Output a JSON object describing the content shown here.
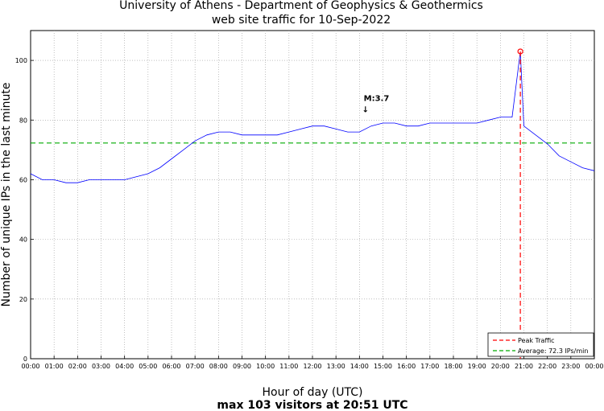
{
  "chart_data": {
    "type": "line",
    "title": "University of Athens - Department of Geophysics & Geothermics",
    "subtitle": "web site traffic for 10-Sep-2022",
    "xlabel": "Hour of day (UTC)",
    "ylabel": "Number of unique IPs in the last minute",
    "caption": "max 103 visitors at 20:51 UTC",
    "xlim_minutes": [
      0,
      1440
    ],
    "ylim": [
      0,
      110
    ],
    "y_ticks": [
      0,
      20,
      40,
      60,
      80,
      100
    ],
    "x_tick_labels": [
      "00:00",
      "01:00",
      "02:00",
      "03:00",
      "04:00",
      "05:00",
      "06:00",
      "07:00",
      "08:00",
      "09:00",
      "10:00",
      "11:00",
      "12:00",
      "13:00",
      "14:00",
      "15:00",
      "16:00",
      "17:00",
      "18:00",
      "19:00",
      "20:00",
      "21:00",
      "22:00",
      "23:00",
      "00:00"
    ],
    "grid": true,
    "legend_position": "bottom-right",
    "series": [
      {
        "name": "traffic",
        "color": "#0000ff",
        "x_unit": "hour (UTC)",
        "x": [
          0,
          0.5,
          1,
          1.5,
          2,
          2.5,
          3,
          3.5,
          4,
          4.5,
          5,
          5.5,
          6,
          6.5,
          7,
          7.5,
          8,
          8.5,
          9,
          9.5,
          10,
          10.5,
          11,
          11.5,
          12,
          12.5,
          13,
          13.5,
          14,
          14.5,
          15,
          15.5,
          16,
          16.5,
          17,
          17.5,
          18,
          18.5,
          19,
          19.5,
          20,
          20.5,
          20.85,
          21,
          21.5,
          22,
          22.5,
          23,
          23.5,
          24
        ],
        "values": [
          62,
          60,
          60,
          59,
          59,
          60,
          60,
          60,
          60,
          61,
          62,
          64,
          67,
          70,
          73,
          75,
          76,
          76,
          75,
          75,
          75,
          75,
          76,
          77,
          78,
          78,
          77,
          76,
          76,
          78,
          79,
          79,
          78,
          78,
          79,
          79,
          79,
          79,
          79,
          80,
          81,
          81,
          103,
          78,
          75,
          72,
          68,
          66,
          64,
          63
        ]
      }
    ],
    "legend": [
      {
        "label": "Peak Traffic",
        "color": "#ff0000",
        "style": "dashed"
      },
      {
        "label": "Average: 72.3 IPs/min",
        "color": "#00aa00",
        "style": "dashed"
      }
    ],
    "average": 72.3,
    "peak": {
      "time_minutes": 1251,
      "value": 103
    },
    "annotation": {
      "text": "M:3.7",
      "arrow": "↓",
      "x_minutes": 855,
      "y_value": 85
    }
  }
}
